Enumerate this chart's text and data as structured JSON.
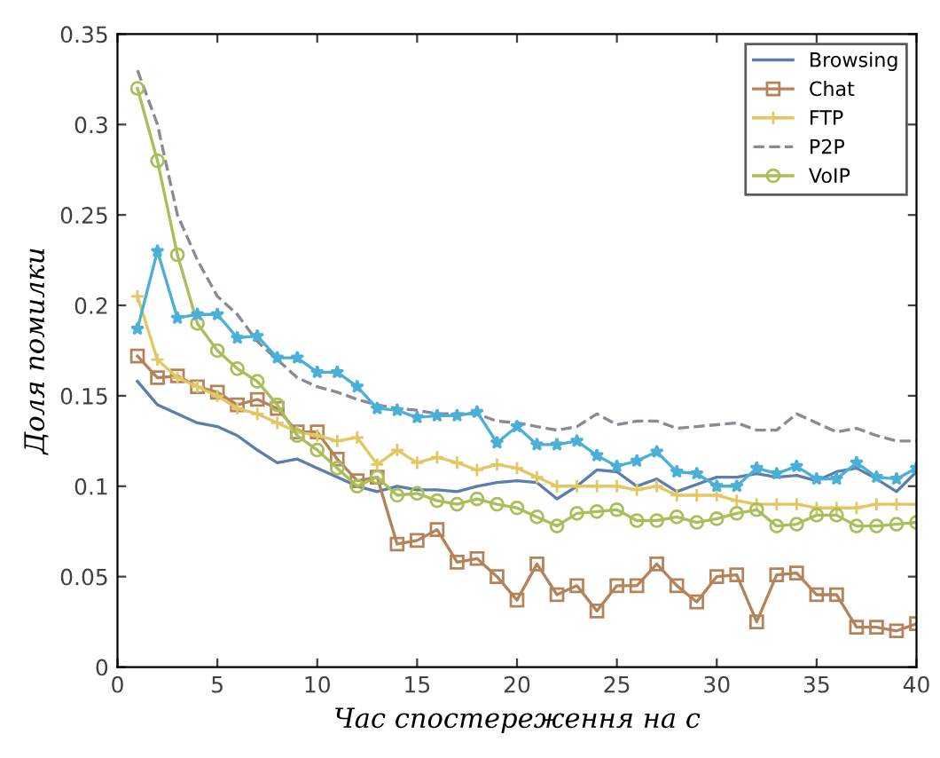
{
  "chart_data": {
    "type": "line",
    "xlabel": "Час спостереження на с",
    "ylabel": "Доля помилки",
    "x": [
      1,
      2,
      3,
      4,
      5,
      6,
      7,
      8,
      9,
      10,
      11,
      12,
      13,
      14,
      15,
      16,
      17,
      18,
      19,
      20,
      21,
      22,
      23,
      24,
      25,
      26,
      27,
      28,
      29,
      30,
      31,
      32,
      33,
      34,
      35,
      36,
      37,
      38,
      39,
      40
    ],
    "xlim": [
      0,
      40
    ],
    "xticks": [
      0,
      5,
      10,
      15,
      20,
      25,
      30,
      35,
      40
    ],
    "ylim": [
      0,
      0.35
    ],
    "yticks": [
      0,
      0.05,
      0.1,
      0.15,
      0.2,
      0.25,
      0.3,
      0.35
    ],
    "grid": false,
    "legend": "top right",
    "series": [
      {
        "name": "Browsing",
        "color": "#5b7fa8",
        "marker": "none",
        "line_style": "solid",
        "values": [
          0.158,
          0.145,
          0.14,
          0.135,
          0.133,
          0.128,
          0.12,
          0.113,
          0.115,
          0.11,
          0.105,
          0.1,
          0.097,
          0.1,
          0.098,
          0.098,
          0.097,
          0.1,
          0.102,
          0.103,
          0.102,
          0.093,
          0.1,
          0.109,
          0.108,
          0.1,
          0.104,
          0.097,
          0.101,
          0.105,
          0.105,
          0.107,
          0.105,
          0.106,
          0.103,
          0.108,
          0.11,
          0.104,
          0.097,
          0.108
        ]
      },
      {
        "name": "Chat",
        "color": "#b5835a",
        "marker": "square",
        "line_style": "solid",
        "values": [
          0.172,
          0.16,
          0.161,
          0.155,
          0.152,
          0.145,
          0.148,
          0.143,
          0.13,
          0.13,
          0.115,
          0.103,
          0.105,
          0.068,
          0.07,
          0.076,
          0.058,
          0.06,
          0.05,
          0.037,
          0.057,
          0.04,
          0.045,
          0.031,
          0.045,
          0.045,
          0.057,
          0.045,
          0.036,
          0.05,
          0.051,
          0.025,
          0.051,
          0.052,
          0.04,
          0.04,
          0.022,
          0.022,
          0.02,
          0.024
        ]
      },
      {
        "name": "FTP",
        "color": "#e3c763",
        "marker": "cross",
        "line_style": "solid",
        "values": [
          0.205,
          0.17,
          0.16,
          0.155,
          0.15,
          0.143,
          0.14,
          0.135,
          0.13,
          0.128,
          0.125,
          0.127,
          0.112,
          0.12,
          0.113,
          0.116,
          0.113,
          0.109,
          0.112,
          0.11,
          0.105,
          0.1,
          0.1,
          0.1,
          0.1,
          0.098,
          0.1,
          0.095,
          0.095,
          0.095,
          0.092,
          0.09,
          0.09,
          0.09,
          0.088,
          0.088,
          0.088,
          0.09,
          0.09,
          0.09
        ]
      },
      {
        "name": "P2P",
        "color": "#8a8a96",
        "marker": "none",
        "line_style": "dashed",
        "values": [
          0.33,
          0.3,
          0.25,
          0.225,
          0.205,
          0.195,
          0.18,
          0.17,
          0.16,
          0.155,
          0.152,
          0.148,
          0.145,
          0.143,
          0.142,
          0.14,
          0.14,
          0.14,
          0.136,
          0.135,
          0.133,
          0.131,
          0.133,
          0.14,
          0.134,
          0.136,
          0.136,
          0.132,
          0.133,
          0.134,
          0.135,
          0.131,
          0.131,
          0.14,
          0.135,
          0.13,
          0.132,
          0.128,
          0.125,
          0.125
        ]
      },
      {
        "name": "VoIP",
        "color": "#a8bf5a",
        "marker": "circle",
        "line_style": "solid",
        "values": [
          0.32,
          0.28,
          0.228,
          0.19,
          0.175,
          0.165,
          0.158,
          0.145,
          0.128,
          0.12,
          0.11,
          0.1,
          0.105,
          0.095,
          0.096,
          0.092,
          0.09,
          0.093,
          0.09,
          0.088,
          0.083,
          0.078,
          0.085,
          0.086,
          0.087,
          0.081,
          0.081,
          0.083,
          0.08,
          0.082,
          0.085,
          0.087,
          0.078,
          0.079,
          0.084,
          0.084,
          0.078,
          0.078,
          0.079,
          0.08
        ]
      },
      {
        "color": "#4bb0d8",
        "marker": "star",
        "line_style": "solid",
        "values": [
          0.187,
          0.23,
          0.193,
          0.195,
          0.195,
          0.182,
          0.183,
          0.171,
          0.171,
          0.163,
          0.163,
          0.155,
          0.143,
          0.142,
          0.138,
          0.139,
          0.139,
          0.141,
          0.124,
          0.133,
          0.123,
          0.123,
          0.125,
          0.117,
          0.111,
          0.114,
          0.119,
          0.108,
          0.107,
          0.1,
          0.1,
          0.11,
          0.107,
          0.111,
          0.104,
          0.104,
          0.113,
          0.105,
          0.104,
          0.11
        ]
      }
    ]
  }
}
